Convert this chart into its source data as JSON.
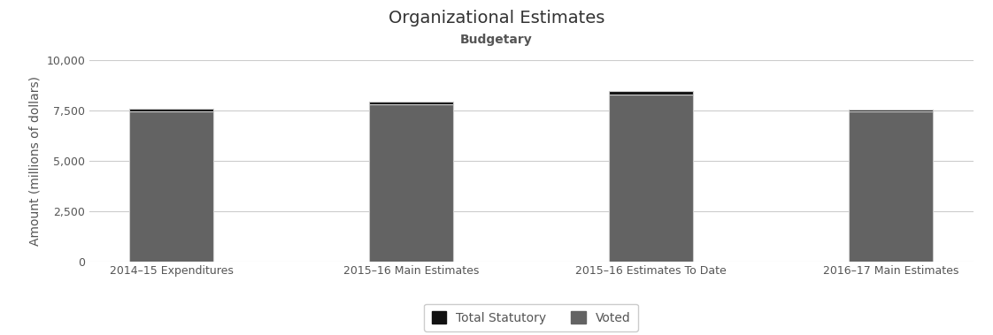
{
  "title": "Organizational Estimates",
  "subtitle": "Budgetary",
  "ylabel": "Amount (millions of dollars)",
  "categories": [
    "2014–15 Expenditures",
    "2015–16 Main Estimates",
    "2015–16 Estimates To Date",
    "2016–17 Main Estimates"
  ],
  "voted": [
    7480,
    7820,
    8300,
    7440
  ],
  "statutory": [
    120,
    130,
    155,
    100
  ],
  "voted_color": "#636363",
  "statutory_color": "#111111",
  "bar_edge_color": "#cccccc",
  "ylim": [
    0,
    10000
  ],
  "yticks": [
    0,
    2500,
    5000,
    7500,
    10000
  ],
  "background_color": "#ffffff",
  "legend_labels": [
    "Total Statutory",
    "Voted"
  ],
  "title_fontsize": 14,
  "subtitle_fontsize": 10,
  "ylabel_fontsize": 10,
  "tick_fontsize": 9,
  "bar_width": 0.35
}
